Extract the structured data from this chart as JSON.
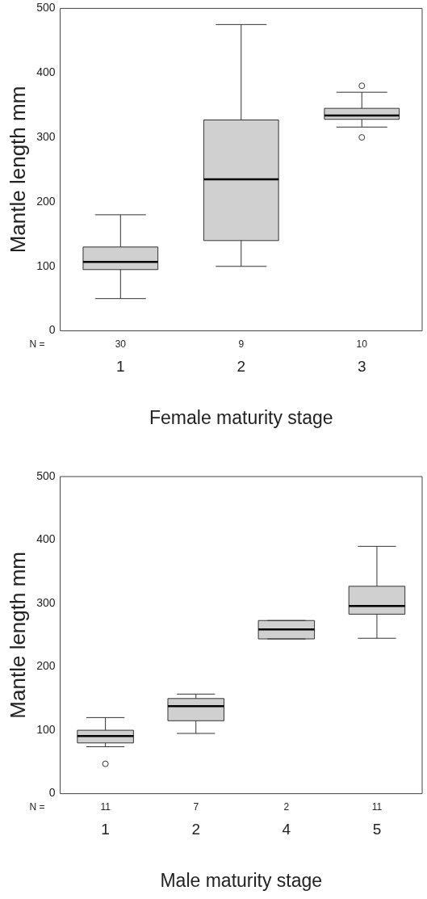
{
  "chart_data": [
    {
      "type": "box",
      "xlabel": "Female maturity stage",
      "ylabel": "Mantle length mm",
      "categories": [
        "1",
        "2",
        "3"
      ],
      "series": [
        {
          "color": "#d0d0d0",
          "boxes": [
            {
              "low": 50,
              "q1": 95,
              "median": 107,
              "q3": 130,
              "high": 180
            },
            {
              "low": 100,
              "q1": 140,
              "median": 235,
              "q3": 327,
              "high": 475
            },
            {
              "low": 316,
              "q1": 328,
              "median": 334,
              "q3": 345,
              "high": 370,
              "outliers": [
                380,
                300
              ]
            }
          ]
        }
      ],
      "ylim": [
        0,
        500
      ],
      "yticks": [
        0,
        100,
        200,
        300,
        400,
        500
      ],
      "annotations": [
        "N =",
        "30",
        "9",
        "10"
      ]
    },
    {
      "type": "box",
      "xlabel": "Male maturity stage",
      "ylabel": "Mantle length mm",
      "categories": [
        "1",
        "2",
        "4",
        "5"
      ],
      "series": [
        {
          "color": "#d0d0d0",
          "boxes": [
            {
              "low": 74,
              "q1": 80,
              "median": 91,
              "q3": 100,
              "high": 120,
              "outliers": [
                47
              ]
            },
            {
              "low": 95,
              "q1": 115,
              "median": 138,
              "q3": 150,
              "high": 157
            },
            {
              "low": 244,
              "q1": 244,
              "median": 259,
              "q3": 273,
              "high": 273
            },
            {
              "low": 245,
              "q1": 283,
              "median": 296,
              "q3": 327,
              "high": 390
            }
          ]
        }
      ],
      "ylim": [
        0,
        500
      ],
      "yticks": [
        0,
        100,
        200,
        300,
        400,
        500
      ],
      "annotations": [
        "N =",
        "11",
        "7",
        "2",
        "11"
      ]
    }
  ]
}
